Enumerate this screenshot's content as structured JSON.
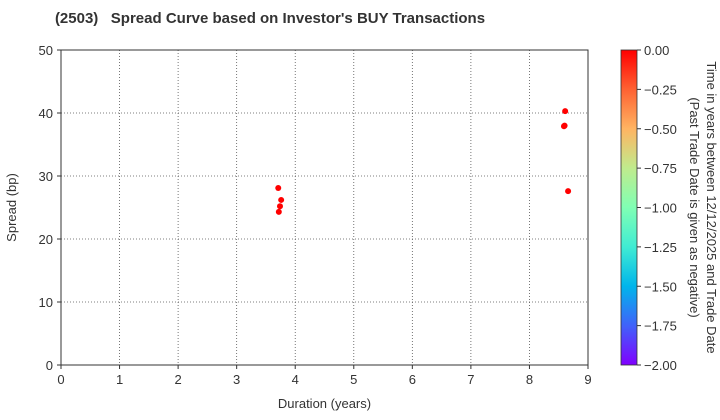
{
  "title": "(2503)   Spread Curve based on Investor's BUY Transactions",
  "chart_data": {
    "type": "scatter",
    "title": "(2503)   Spread Curve based on Investor's BUY Transactions",
    "xlabel": "Duration (years)",
    "ylabel": "Spread (bp)",
    "xlim": [
      0,
      9
    ],
    "ylim": [
      0,
      50
    ],
    "xticks": [
      0,
      1,
      2,
      3,
      4,
      5,
      6,
      7,
      8,
      9
    ],
    "yticks": [
      0,
      10,
      20,
      30,
      40,
      50
    ],
    "grid": true,
    "points": [
      {
        "x": 3.71,
        "y": 28.1,
        "c": 0.0
      },
      {
        "x": 3.76,
        "y": 26.2,
        "c": 0.0
      },
      {
        "x": 3.74,
        "y": 25.2,
        "c": 0.0
      },
      {
        "x": 3.72,
        "y": 24.3,
        "c": 0.0
      },
      {
        "x": 8.61,
        "y": 40.3,
        "c": 0.0
      },
      {
        "x": 8.59,
        "y": 37.9,
        "c": 0.0
      },
      {
        "x": 8.6,
        "y": 38.0,
        "c": 0.0
      },
      {
        "x": 8.66,
        "y": 27.6,
        "c": 0.0
      }
    ],
    "colorbar": {
      "label_line1": "Time in years between 12/12/2025 and Trade Date",
      "label_line2": "(Past Trade Date is given as negative)",
      "range": [
        -2.0,
        0.0
      ],
      "ticks": [
        "0.00",
        "−0.25",
        "−0.50",
        "−0.75",
        "−1.00",
        "−1.25",
        "−1.50",
        "−1.75",
        "−2.00"
      ],
      "colormap": "rainbow"
    }
  }
}
